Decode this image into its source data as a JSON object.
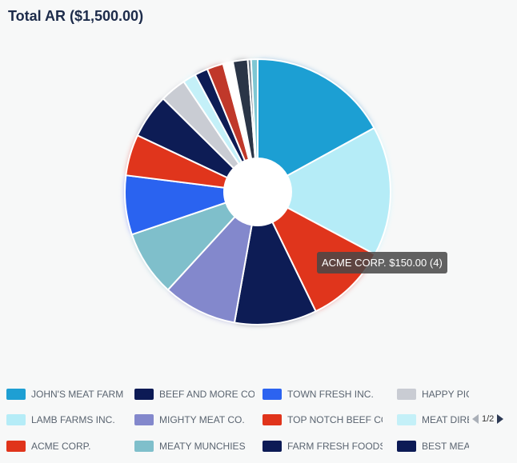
{
  "title": "Total AR ($1,500.00)",
  "tooltip": "ACME CORP. $150.00 (4)",
  "pager": {
    "text": "1/2"
  },
  "chart_data": {
    "type": "pie",
    "donut": true,
    "total": 1500,
    "slices": [
      {
        "label": "JOHN'S MEAT FARM",
        "value": 255,
        "color": "#1e9fd3"
      },
      {
        "label": "LAMB FARMS INC.",
        "value": 237,
        "color": "#b5ecf7"
      },
      {
        "label": "ACME CORP.",
        "value": 150,
        "color": "#e0341b"
      },
      {
        "label": "BEEF AND MORE CO.",
        "value": 150,
        "color": "#0c1a55"
      },
      {
        "label": "MIGHTY MEAT CO.",
        "value": 135,
        "color": "#8388cc"
      },
      {
        "label": "MEATY MUNCHIES",
        "value": 120,
        "color": "#7fbfcb"
      },
      {
        "label": "TOWN FRESH INC.",
        "value": 108,
        "color": "#2c63f0"
      },
      {
        "label": "TOP NOTCH BEEF CO.",
        "value": 75,
        "color": "#e0341b"
      },
      {
        "label": "FARM FRESH FOODS",
        "value": 81,
        "color": "#0c1a55"
      },
      {
        "label": "HAPPY PIG",
        "value": 48,
        "color": "#c9ccd3"
      },
      {
        "label": "MEAT DIRECT",
        "value": 24,
        "color": "#c4f0f8"
      },
      {
        "label": "BEST MEATS",
        "value": 24,
        "color": "#0c1a55"
      },
      {
        "label": "",
        "value": 30,
        "color": "#c0392b"
      },
      {
        "label": "",
        "value": 18,
        "color": "#ffffff"
      },
      {
        "label": "",
        "value": 27,
        "color": "#2b3546"
      },
      {
        "label": "",
        "value": 6,
        "color": "#6a7684"
      },
      {
        "label": "",
        "value": 12,
        "color": "#7fc7d3"
      }
    ]
  },
  "legend": [
    {
      "label": "JOHN'S MEAT FARM",
      "color": "#1e9fd3"
    },
    {
      "label": "BEEF AND MORE CO.",
      "color": "#0c1a55"
    },
    {
      "label": "TOWN FRESH INC.",
      "color": "#2c63f0"
    },
    {
      "label": "HAPPY PIG",
      "color": "#c9ccd3"
    },
    {
      "label": "LAMB FARMS INC.",
      "color": "#b5ecf7"
    },
    {
      "label": "MIGHTY MEAT CO.",
      "color": "#8388cc"
    },
    {
      "label": "TOP NOTCH BEEF CO.",
      "color": "#e0341b"
    },
    {
      "label": "MEAT DIRECT",
      "color": "#c4f0f8"
    },
    {
      "label": "ACME CORP.",
      "color": "#e0341b"
    },
    {
      "label": "MEATY MUNCHIES",
      "color": "#7fbfcb"
    },
    {
      "label": "FARM FRESH FOODS",
      "color": "#0c1a55"
    },
    {
      "label": "BEST MEATS",
      "color": "#0c1a55"
    }
  ]
}
